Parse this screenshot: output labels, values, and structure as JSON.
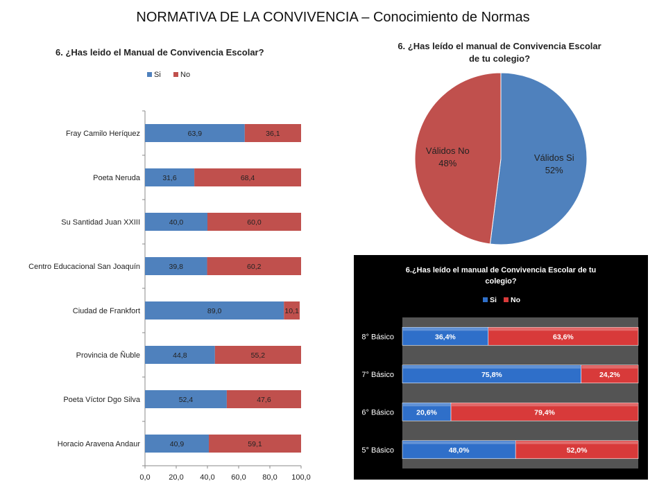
{
  "slide": {
    "title": "NORMATIVA DE LA CONVIVENCIA – Conocimiento de Normas"
  },
  "chart_data": [
    {
      "type": "bar",
      "orientation": "horizontal",
      "stacked": true,
      "title": "6. ¿Has leido el Manual de Convivencia Escolar?",
      "legend": {
        "position": "top-left",
        "entries": [
          "Si",
          "No"
        ]
      },
      "categories": [
        "Fray Camilo Heríquez",
        "Poeta Neruda",
        "Su Santidad Juan XXIII",
        "Centro Educacional San Joaquín",
        "Ciudad de Frankfort",
        "Provincia de Ñuble",
        "Poeta Víctor Dgo Silva",
        "Horacio Aravena Andaur"
      ],
      "series": [
        {
          "name": "Si",
          "color": "#4F81BD",
          "values": [
            63.9,
            31.6,
            40.0,
            39.8,
            89.0,
            44.8,
            52.4,
            40.9
          ],
          "labels": [
            "63,9",
            "31,6",
            "40,0",
            "39,8",
            "89,0",
            "44,8",
            "52,4",
            "40,9"
          ]
        },
        {
          "name": "No",
          "color": "#C0504D",
          "values": [
            36.1,
            68.4,
            60.0,
            60.2,
            10.1,
            55.2,
            47.6,
            59.1
          ],
          "labels": [
            "36,1",
            "68,4",
            "60,0",
            "60,2",
            "10,1",
            "55,2",
            "47,6",
            "59,1"
          ]
        }
      ],
      "xlim": [
        0,
        100
      ],
      "xticks": [
        "0,0",
        "20,0",
        "40,0",
        "60,0",
        "80,0",
        "100,0"
      ],
      "grid": false
    },
    {
      "type": "pie",
      "title_lines": [
        "6. ¿Has leído el manual de Convivencia Escolar",
        "de tu colegio?"
      ],
      "slices": [
        {
          "label": "Válidos Si",
          "pct_label": "52%",
          "value": 52,
          "color": "#4F81BD"
        },
        {
          "label": "Válidos No",
          "pct_label": "48%",
          "value": 48,
          "color": "#C0504D"
        }
      ]
    },
    {
      "type": "bar",
      "orientation": "horizontal",
      "stacked": true,
      "title_lines": [
        "6.¿Has leído el manual de Convivencia Escolar  de tu",
        "colegio?"
      ],
      "legend": {
        "position": "top",
        "entries": [
          "Si",
          "No"
        ]
      },
      "categories": [
        "8° Básico",
        "7° Básico",
        "6° Básico",
        "5° Básico"
      ],
      "series": [
        {
          "name": "Si",
          "color": "#2F6FC9",
          "values": [
            36.4,
            75.8,
            20.6,
            48.0
          ],
          "labels": [
            "36,4%",
            "75,8%",
            "20,6%",
            "48,0%"
          ]
        },
        {
          "name": "No",
          "color": "#D83A3A",
          "values": [
            63.6,
            24.2,
            79.4,
            52.0
          ],
          "labels": [
            "63,6%",
            "24,2%",
            "79,4%",
            "52,0%"
          ]
        }
      ],
      "xlim": [
        0,
        100
      ],
      "background": "#000000",
      "grid": false
    }
  ]
}
